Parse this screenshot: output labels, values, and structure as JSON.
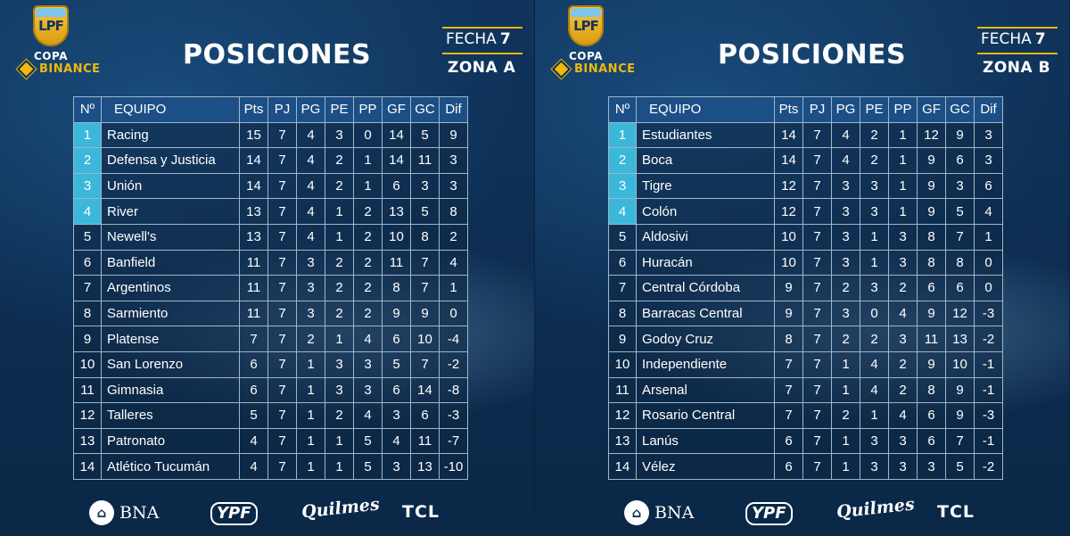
{
  "panels": [
    {
      "logo": {
        "letters": "LPF",
        "copa": "COPA",
        "brand": "BINANCE"
      },
      "title": "POSICIONES",
      "fecha_label": "FECHA",
      "fecha_num": "7",
      "zona": "ZONA A",
      "headers": [
        "Nº",
        "EQUIPO",
        "Pts",
        "PJ",
        "PG",
        "PE",
        "PP",
        "GF",
        "GC",
        "Dif"
      ],
      "rows": [
        [
          "1",
          "Racing",
          "15",
          "7",
          "4",
          "3",
          "0",
          "14",
          "5",
          "9"
        ],
        [
          "2",
          "Defensa y Justicia",
          "14",
          "7",
          "4",
          "2",
          "1",
          "14",
          "11",
          "3"
        ],
        [
          "3",
          "Unión",
          "14",
          "7",
          "4",
          "2",
          "1",
          "6",
          "3",
          "3"
        ],
        [
          "4",
          "River",
          "13",
          "7",
          "4",
          "1",
          "2",
          "13",
          "5",
          "8"
        ],
        [
          "5",
          "Newell's",
          "13",
          "7",
          "4",
          "1",
          "2",
          "10",
          "8",
          "2"
        ],
        [
          "6",
          "Banfield",
          "11",
          "7",
          "3",
          "2",
          "2",
          "11",
          "7",
          "4"
        ],
        [
          "7",
          "Argentinos",
          "11",
          "7",
          "3",
          "2",
          "2",
          "8",
          "7",
          "1"
        ],
        [
          "8",
          "Sarmiento",
          "11",
          "7",
          "3",
          "2",
          "2",
          "9",
          "9",
          "0"
        ],
        [
          "9",
          "Platense",
          "7",
          "7",
          "2",
          "1",
          "4",
          "6",
          "10",
          "-4"
        ],
        [
          "10",
          "San Lorenzo",
          "6",
          "7",
          "1",
          "3",
          "3",
          "5",
          "7",
          "-2"
        ],
        [
          "11",
          "Gimnasia",
          "6",
          "7",
          "1",
          "3",
          "3",
          "6",
          "14",
          "-8"
        ],
        [
          "12",
          "Talleres",
          "5",
          "7",
          "1",
          "2",
          "4",
          "3",
          "6",
          "-3"
        ],
        [
          "13",
          "Patronato",
          "4",
          "7",
          "1",
          "1",
          "5",
          "4",
          "11",
          "-7"
        ],
        [
          "14",
          "Atlético Tucumán",
          "4",
          "7",
          "1",
          "1",
          "5",
          "3",
          "13",
          "-10"
        ]
      ],
      "sponsors": {
        "bna": "BNA",
        "ypf": "YPF",
        "quilmes": "Quilmes",
        "tcl": "TCL"
      }
    },
    {
      "logo": {
        "letters": "LPF",
        "copa": "COPA",
        "brand": "BINANCE"
      },
      "title": "POSICIONES",
      "fecha_label": "FECHA",
      "fecha_num": "7",
      "zona": "ZONA B",
      "headers": [
        "Nº",
        "EQUIPO",
        "Pts",
        "PJ",
        "PG",
        "PE",
        "PP",
        "GF",
        "GC",
        "Dif"
      ],
      "rows": [
        [
          "1",
          "Estudiantes",
          "14",
          "7",
          "4",
          "2",
          "1",
          "12",
          "9",
          "3"
        ],
        [
          "2",
          "Boca",
          "14",
          "7",
          "4",
          "2",
          "1",
          "9",
          "6",
          "3"
        ],
        [
          "3",
          "Tigre",
          "12",
          "7",
          "3",
          "3",
          "1",
          "9",
          "3",
          "6"
        ],
        [
          "4",
          "Colón",
          "12",
          "7",
          "3",
          "3",
          "1",
          "9",
          "5",
          "4"
        ],
        [
          "5",
          "Aldosivi",
          "10",
          "7",
          "3",
          "1",
          "3",
          "8",
          "7",
          "1"
        ],
        [
          "6",
          "Huracán",
          "10",
          "7",
          "3",
          "1",
          "3",
          "8",
          "8",
          "0"
        ],
        [
          "7",
          "Central Córdoba",
          "9",
          "7",
          "2",
          "3",
          "2",
          "6",
          "6",
          "0"
        ],
        [
          "8",
          "Barracas Central",
          "9",
          "7",
          "3",
          "0",
          "4",
          "9",
          "12",
          "-3"
        ],
        [
          "9",
          "Godoy Cruz",
          "8",
          "7",
          "2",
          "2",
          "3",
          "11",
          "13",
          "-2"
        ],
        [
          "10",
          "Independiente",
          "7",
          "7",
          "1",
          "4",
          "2",
          "9",
          "10",
          "-1"
        ],
        [
          "11",
          "Arsenal",
          "7",
          "7",
          "1",
          "4",
          "2",
          "8",
          "9",
          "-1"
        ],
        [
          "12",
          "Rosario Central",
          "7",
          "7",
          "2",
          "1",
          "4",
          "6",
          "9",
          "-3"
        ],
        [
          "13",
          "Lanús",
          "6",
          "7",
          "1",
          "3",
          "3",
          "6",
          "7",
          "-1"
        ],
        [
          "14",
          "Vélez",
          "6",
          "7",
          "1",
          "3",
          "3",
          "3",
          "5",
          "-2"
        ]
      ],
      "sponsors": {
        "bna": "BNA",
        "ypf": "YPF",
        "quilmes": "Quilmes",
        "tcl": "TCL"
      }
    }
  ],
  "icons": {
    "bank": "bank-icon",
    "binance": "binance-diamond-icon"
  },
  "colors": {
    "qualified": "#3bb7d9",
    "header": "#1c4f86",
    "accent": "#f0b90b"
  }
}
